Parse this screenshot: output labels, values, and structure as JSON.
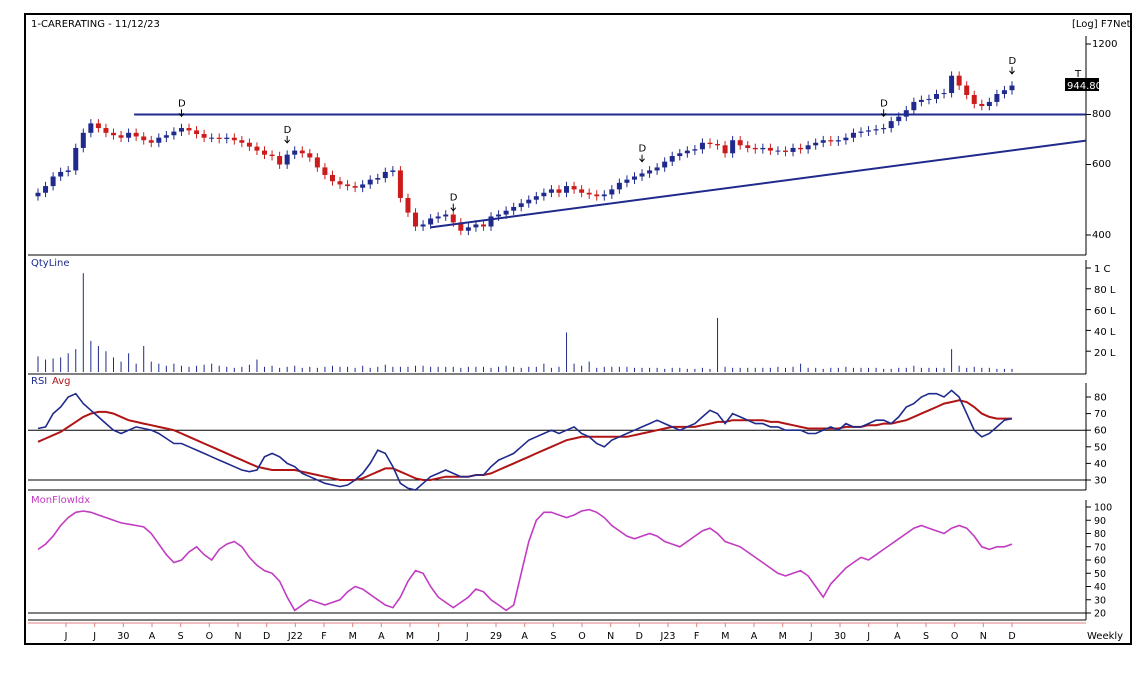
{
  "header": {
    "title": "1-CARERATING - 11/12/23",
    "scale_info": "[Log] F7Net",
    "last_price": "944.80"
  },
  "panels": {
    "price": {
      "y_ticks": [
        "1200",
        "800",
        "600",
        "400"
      ]
    },
    "volume": {
      "label": "QtyLine",
      "y_ticks": [
        "1 C",
        "80 L",
        "60 L",
        "40 L",
        "20 L"
      ]
    },
    "rsi": {
      "label": "RSI",
      "label2": "Avg",
      "y_ticks": [
        "80",
        "70",
        "60",
        "50",
        "40",
        "30"
      ]
    },
    "mfi": {
      "label": "MonFlowIdx",
      "y_ticks": [
        "100",
        "90",
        "80",
        "70",
        "60",
        "50",
        "40",
        "30",
        "20"
      ]
    }
  },
  "x_axis": {
    "labels": [
      "J",
      "J",
      "30",
      "A",
      "S",
      "O",
      "N",
      "D",
      "J22",
      "F",
      "M",
      "A",
      "M",
      "J",
      "J",
      "29",
      "A",
      "S",
      "O",
      "N",
      "D",
      "J23",
      "F",
      "M",
      "A",
      "M",
      "J",
      "30",
      "J",
      "A",
      "S",
      "O",
      "N",
      "D"
    ],
    "period": "Weekly"
  },
  "markers": {
    "d_label": "D",
    "t_label": "T"
  },
  "colors": {
    "bull": "#1f2a8c",
    "bear": "#cc1b1b",
    "trend": "#1f2a8c",
    "rsi": "#1f2a8c",
    "rsi_avg": "#b01515",
    "mfi": "#c23cc2",
    "frame": "#000000"
  },
  "chart_data": {
    "type": "candlestick",
    "timeframe": "Weekly",
    "close": [
      510,
      530,
      560,
      575,
      580,
      660,
      720,
      760,
      740,
      720,
      710,
      700,
      720,
      705,
      690,
      680,
      700,
      710,
      725,
      740,
      730,
      715,
      700,
      700,
      695,
      700,
      690,
      680,
      665,
      650,
      635,
      630,
      600,
      635,
      650,
      640,
      625,
      590,
      565,
      545,
      535,
      530,
      525,
      535,
      550,
      555,
      575,
      580,
      495,
      455,
      420,
      425,
      440,
      445,
      450,
      430,
      410,
      418,
      425,
      420,
      445,
      450,
      460,
      470,
      480,
      490,
      500,
      510,
      520,
      510,
      530,
      520,
      510,
      505,
      500,
      505,
      520,
      540,
      550,
      560,
      570,
      580,
      590,
      610,
      630,
      640,
      650,
      655,
      680,
      675,
      670,
      640,
      690,
      670,
      660,
      655,
      660,
      650,
      650,
      645,
      660,
      655,
      670,
      680,
      690,
      685,
      690,
      700,
      720,
      725,
      730,
      735,
      740,
      770,
      790,
      820,
      860,
      870,
      875,
      900,
      905,
      1000,
      945,
      895,
      850,
      840,
      860,
      900,
      920,
      944.8
    ],
    "rsi": [
      61,
      62,
      70,
      74,
      80,
      82,
      76,
      72,
      68,
      64,
      60,
      58,
      60,
      62,
      61,
      60,
      58,
      55,
      52,
      52,
      50,
      48,
      46,
      44,
      42,
      40,
      38,
      36,
      35,
      36,
      44,
      46,
      44,
      40,
      38,
      34,
      32,
      30,
      28,
      27,
      26,
      27,
      30,
      34,
      40,
      48,
      46,
      38,
      28,
      25,
      24,
      28,
      32,
      34,
      36,
      34,
      32,
      32,
      33,
      33,
      38,
      42,
      44,
      46,
      50,
      54,
      56,
      58,
      60,
      58,
      60,
      62,
      58,
      56,
      52,
      50,
      54,
      56,
      58,
      60,
      62,
      64,
      66,
      64,
      62,
      60,
      62,
      64,
      68,
      72,
      70,
      64,
      70,
      68,
      66,
      64,
      64,
      62,
      62,
      60,
      60,
      60,
      58,
      58,
      60,
      62,
      60,
      64,
      62,
      62,
      64,
      66,
      66,
      64,
      68,
      74,
      76,
      80,
      82,
      82,
      80,
      84,
      80,
      70,
      60,
      56,
      58,
      62,
      66,
      67
    ],
    "rsi_avg": [
      53,
      55,
      57,
      59,
      62,
      65,
      68,
      70,
      71,
      71,
      70,
      68,
      66,
      65,
      64,
      63,
      62,
      61,
      60,
      58,
      56,
      54,
      52,
      50,
      48,
      46,
      44,
      42,
      40,
      38,
      37,
      36,
      36,
      36,
      36,
      35,
      34,
      33,
      32,
      31,
      30,
      30,
      30,
      31,
      33,
      35,
      37,
      37,
      35,
      33,
      31,
      30,
      30,
      31,
      32,
      32,
      32,
      32,
      33,
      33,
      34,
      36,
      38,
      40,
      42,
      44,
      46,
      48,
      50,
      52,
      54,
      55,
      56,
      56,
      56,
      56,
      56,
      56,
      56,
      57,
      58,
      59,
      60,
      61,
      62,
      62,
      62,
      62,
      63,
      64,
      65,
      65,
      66,
      66,
      66,
      66,
      66,
      65,
      65,
      64,
      63,
      62,
      61,
      61,
      61,
      61,
      61,
      62,
      62,
      62,
      63,
      63,
      64,
      64,
      65,
      66,
      68,
      70,
      72,
      74,
      76,
      77,
      78,
      77,
      74,
      70,
      68,
      67,
      67,
      67
    ],
    "mfi": [
      68,
      72,
      78,
      86,
      92,
      96,
      97,
      96,
      94,
      92,
      90,
      88,
      87,
      86,
      85,
      80,
      72,
      64,
      58,
      60,
      66,
      70,
      64,
      60,
      68,
      72,
      74,
      70,
      62,
      56,
      52,
      50,
      44,
      32,
      22,
      26,
      30,
      28,
      26,
      28,
      30,
      36,
      40,
      38,
      34,
      30,
      26,
      24,
      32,
      44,
      52,
      50,
      40,
      32,
      28,
      24,
      28,
      32,
      38,
      36,
      30,
      26,
      22,
      26,
      50,
      74,
      90,
      96,
      96,
      94,
      92,
      94,
      97,
      98,
      96,
      92,
      86,
      82,
      78,
      76,
      78,
      80,
      78,
      74,
      72,
      70,
      74,
      78,
      82,
      84,
      80,
      74,
      72,
      70,
      66,
      62,
      58,
      54,
      50,
      48,
      50,
      52,
      48,
      40,
      32,
      42,
      48,
      54,
      58,
      62,
      60,
      64,
      68,
      72,
      76,
      80,
      84,
      86,
      84,
      82,
      80,
      84,
      86,
      84,
      78,
      70,
      68,
      70,
      70,
      72
    ],
    "volume_L": [
      15,
      12,
      13,
      14,
      18,
      22,
      95,
      30,
      25,
      20,
      14,
      10,
      18,
      8,
      25,
      10,
      8,
      6,
      8,
      6,
      5,
      6,
      7,
      8,
      6,
      5,
      4,
      5,
      7,
      12,
      5,
      6,
      4,
      5,
      6,
      4,
      5,
      4,
      5,
      6,
      5,
      5,
      4,
      6,
      4,
      5,
      7,
      5,
      5,
      5,
      6,
      6,
      5,
      5,
      5,
      5,
      4,
      5,
      5,
      5,
      4,
      5,
      6,
      5,
      4,
      5,
      5,
      8,
      4,
      5,
      38,
      8,
      6,
      10,
      4,
      5,
      5,
      5,
      5,
      4,
      4,
      4,
      4,
      3,
      4,
      4,
      3,
      3,
      4,
      3,
      52,
      5,
      4,
      4,
      4,
      4,
      4,
      4,
      5,
      4,
      5,
      8,
      4,
      4,
      3,
      4,
      4,
      5,
      4,
      4,
      4,
      4,
      3,
      3,
      4,
      4,
      6,
      4,
      4,
      4,
      4,
      22,
      6,
      4,
      5,
      4,
      4,
      3,
      3,
      3
    ],
    "y_ticks_price": [
      1200,
      800,
      600,
      400
    ],
    "y_ticks_rsi": [
      80,
      70,
      60,
      50,
      40,
      30
    ],
    "y_ticks_mfi": [
      100,
      90,
      80,
      70,
      60,
      50,
      40,
      30,
      20
    ],
    "y_ticks_volume": [
      "1 C",
      "80 L",
      "60 L",
      "40 L",
      "20 L"
    ],
    "price_scale": "log",
    "horizontal_levels": {
      "price": 800,
      "rsi": [
        30,
        60
      ],
      "mfi": [
        20
      ]
    },
    "divergence_marks_week_index": [
      22,
      39,
      64,
      94,
      131,
      151
    ],
    "trendline_price": [
      [
        52,
        418
      ],
      [
        156,
        760
      ]
    ],
    "last_price": 944.8
  }
}
